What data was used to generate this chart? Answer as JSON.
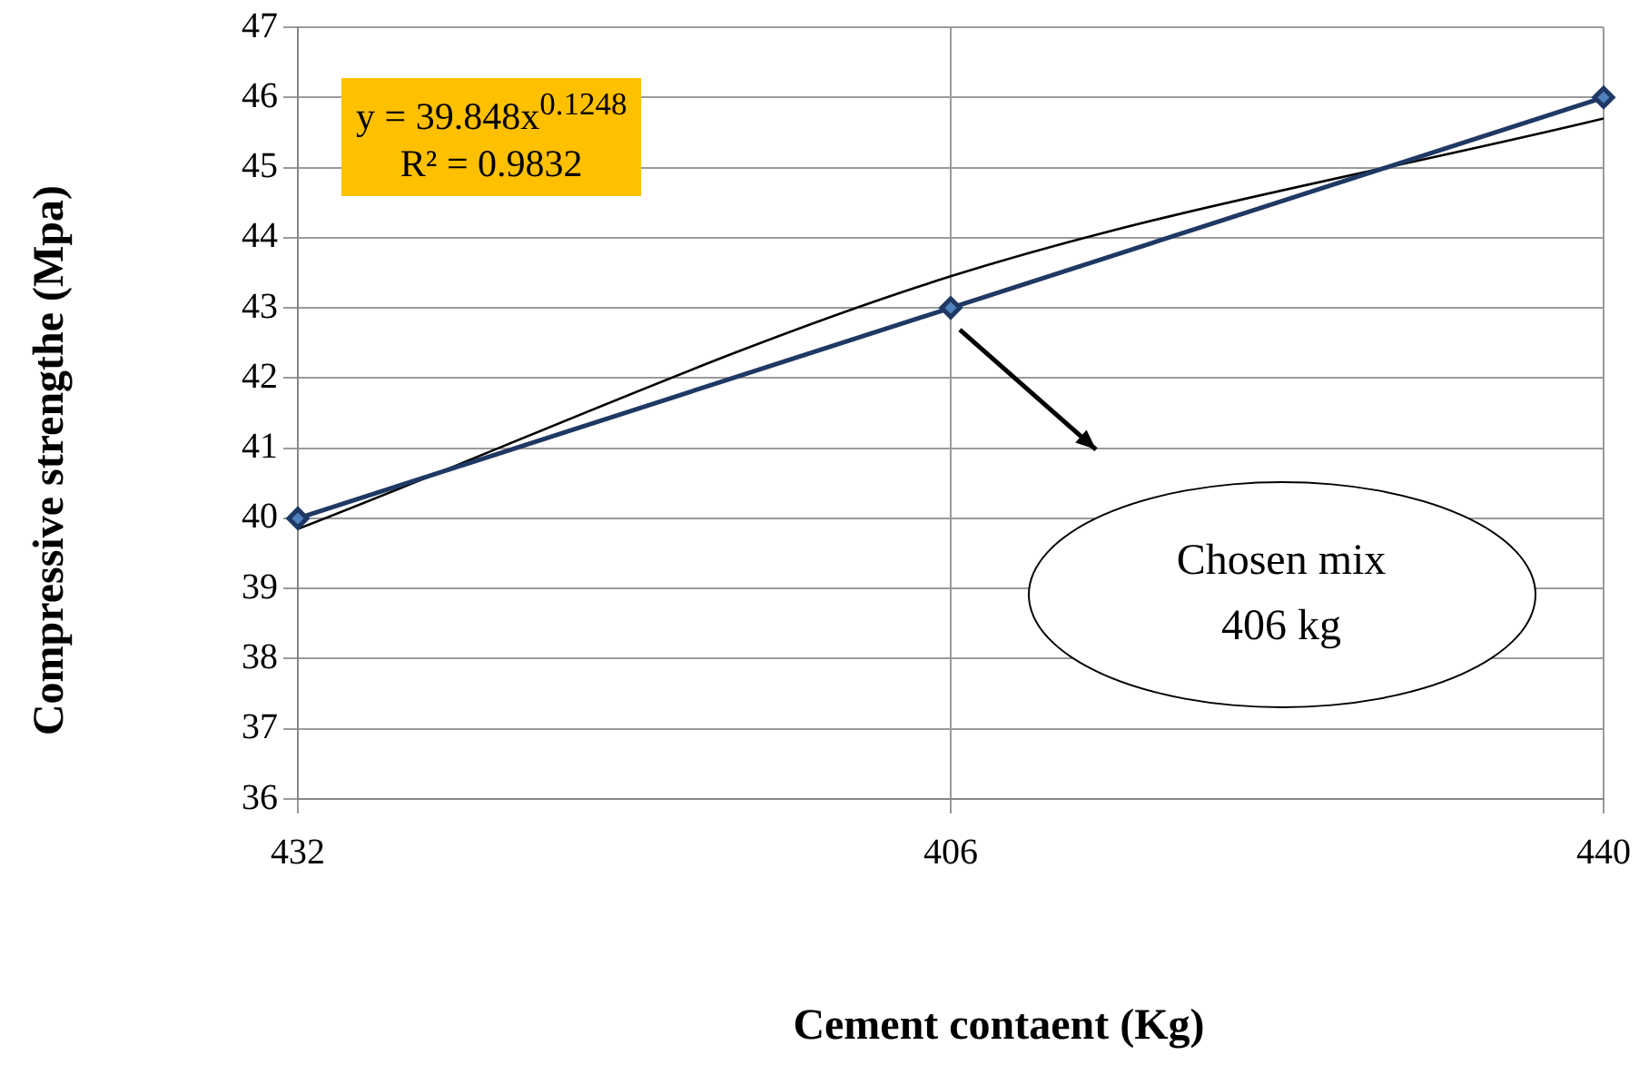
{
  "chart_data": {
    "type": "line",
    "xlabel": "Cement contaent  (Kg)",
    "ylabel": "Compressive strengthe (Mpa)",
    "categories": [
      "432",
      "406",
      "440"
    ],
    "series": [
      {
        "color": "#1f3864",
        "values": [
          40,
          43,
          46
        ],
        "marker": "diamond"
      },
      {
        "type": "line",
        "color": "#000000",
        "values": [
          39.85,
          43.45,
          45.7
        ],
        "marker": "none"
      }
    ],
    "ylim": [
      36,
      47
    ],
    "yticks": [
      36,
      37,
      38,
      39,
      40,
      41,
      42,
      43,
      44,
      45,
      46,
      47
    ],
    "grid": true,
    "legend": false,
    "annotations": [
      "y = 39.848x$^{0.1248}$",
      "R² = 0.9832",
      "Chosen mix 406 kg"
    ]
  }
}
